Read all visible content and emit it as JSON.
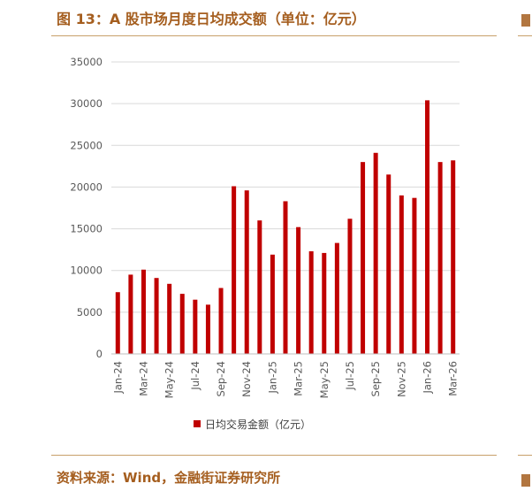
{
  "header": {
    "title": "图 13：A 股市场月度日均成交额（单位：亿元）"
  },
  "footer": {
    "source": "资料来源：Wind，金融街证券研究所"
  },
  "chart_data": {
    "type": "bar",
    "title": "图 13：A 股市场月度日均成交额（单位：亿元）",
    "categories": [
      "Jan-24",
      "Feb-24",
      "Mar-24",
      "Apr-24",
      "May-24",
      "Jun-24",
      "Jul-24",
      "Aug-24",
      "Sep-24",
      "Oct-24",
      "Nov-24",
      "Dec-24",
      "Jan-25",
      "Feb-25",
      "Mar-25",
      "Apr-25",
      "May-25",
      "Jun-25",
      "Jul-25",
      "Aug-25",
      "Sep-25",
      "Oct-25",
      "Nov-25",
      "Dec-25",
      "Jan-26",
      "Feb-26",
      "Mar-26"
    ],
    "tick_labels": [
      "Jan-24",
      "Mar-24",
      "May-24",
      "Jul-24",
      "Sep-24",
      "Nov-24",
      "Jan-25",
      "Mar-25",
      "May-25",
      "Jul-25",
      "Sep-25",
      "Nov-25",
      "Jan-26",
      "Mar-26"
    ],
    "series": [
      {
        "name": "日均交易金额（亿元）",
        "color": "#c00000",
        "values": [
          7400,
          9500,
          10100,
          9100,
          8400,
          7200,
          6500,
          5900,
          7900,
          20100,
          19600,
          16000,
          11900,
          18300,
          15200,
          12300,
          12100,
          13300,
          16200,
          23000,
          24100,
          21500,
          19000,
          18700,
          30400,
          23000,
          23200
        ]
      }
    ],
    "y_ticks": [
      0,
      5000,
      10000,
      15000,
      20000,
      25000,
      30000,
      35000
    ],
    "ylim": [
      0,
      35000
    ],
    "grid": true,
    "legend_position": "bottom"
  }
}
